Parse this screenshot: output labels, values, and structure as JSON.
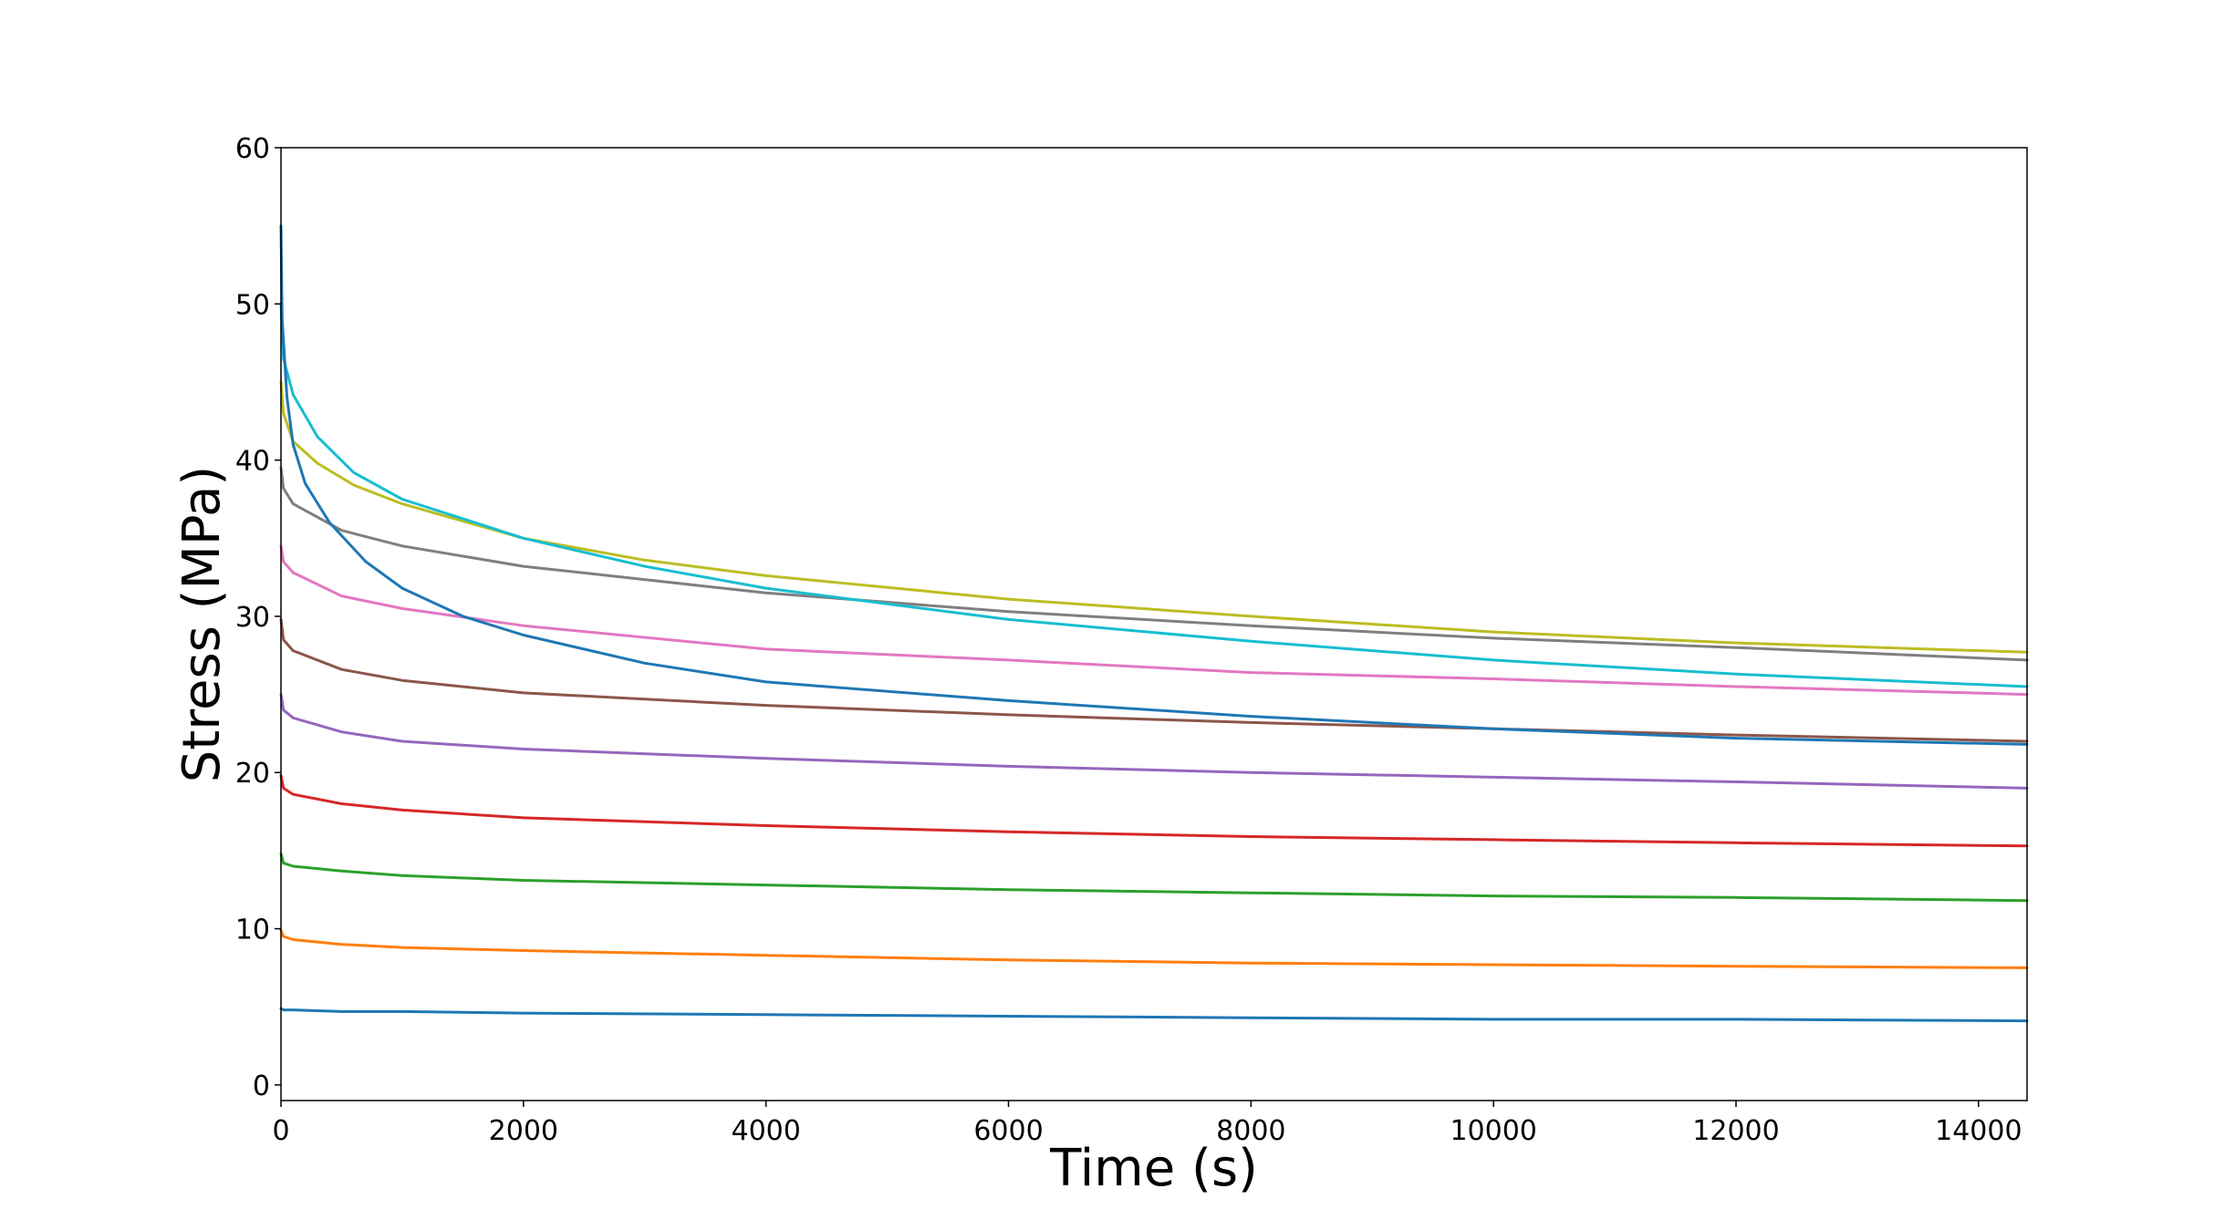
{
  "chart_data": {
    "type": "line",
    "title": "",
    "xlabel": "Time (s)",
    "ylabel": "Stress (MPa)",
    "xlim": [
      0,
      14400
    ],
    "ylim": [
      -1,
      60
    ],
    "xticks": [
      0,
      2000,
      4000,
      6000,
      8000,
      10000,
      12000,
      14000
    ],
    "yticks": [
      0,
      10,
      20,
      30,
      40,
      50,
      60
    ],
    "grid": false,
    "legend": "none",
    "series": [
      {
        "color": "#1f77b4",
        "x": [
          0,
          20,
          100,
          500,
          1000,
          2000,
          4000,
          6000,
          8000,
          10000,
          12000,
          14400
        ],
        "y": [
          4.9,
          4.8,
          4.8,
          4.7,
          4.7,
          4.6,
          4.5,
          4.4,
          4.3,
          4.2,
          4.2,
          4.1
        ]
      },
      {
        "color": "#ff7f0e",
        "x": [
          0,
          20,
          100,
          500,
          1000,
          2000,
          4000,
          6000,
          8000,
          10000,
          12000,
          14400
        ],
        "y": [
          9.9,
          9.5,
          9.3,
          9.0,
          8.8,
          8.6,
          8.3,
          8.0,
          7.8,
          7.7,
          7.6,
          7.5
        ]
      },
      {
        "color": "#2ca02c",
        "x": [
          0,
          20,
          100,
          500,
          1000,
          2000,
          4000,
          6000,
          8000,
          10000,
          12000,
          14400
        ],
        "y": [
          14.8,
          14.2,
          14.0,
          13.7,
          13.4,
          13.1,
          12.8,
          12.5,
          12.3,
          12.1,
          12.0,
          11.8
        ]
      },
      {
        "color": "#d62728",
        "x": [
          0,
          20,
          100,
          500,
          1000,
          2000,
          4000,
          6000,
          8000,
          10000,
          12000,
          14400
        ],
        "y": [
          19.8,
          19.0,
          18.6,
          18.0,
          17.6,
          17.1,
          16.6,
          16.2,
          15.9,
          15.7,
          15.5,
          15.3
        ]
      },
      {
        "color": "#9467bd",
        "x": [
          0,
          20,
          100,
          500,
          1000,
          2000,
          4000,
          6000,
          8000,
          10000,
          12000,
          14400
        ],
        "y": [
          25.0,
          24.0,
          23.5,
          22.6,
          22.0,
          21.5,
          20.9,
          20.4,
          20.0,
          19.7,
          19.4,
          19.0
        ]
      },
      {
        "color": "#8c564b",
        "x": [
          0,
          20,
          100,
          500,
          1000,
          2000,
          4000,
          6000,
          8000,
          10000,
          12000,
          14400
        ],
        "y": [
          29.8,
          28.5,
          27.8,
          26.6,
          25.9,
          25.1,
          24.3,
          23.7,
          23.2,
          22.8,
          22.4,
          22.0
        ]
      },
      {
        "color": "#e377c2",
        "x": [
          0,
          20,
          100,
          500,
          1000,
          2000,
          4000,
          6000,
          8000,
          10000,
          12000,
          14400
        ],
        "y": [
          34.5,
          33.5,
          32.8,
          31.3,
          30.5,
          29.4,
          27.9,
          27.2,
          26.4,
          26.0,
          25.5,
          25.0
        ]
      },
      {
        "color": "#7f7f7f",
        "x": [
          0,
          20,
          100,
          500,
          1000,
          2000,
          4000,
          6000,
          8000,
          10000,
          12000,
          14400
        ],
        "y": [
          39.5,
          38.2,
          37.2,
          35.5,
          34.5,
          33.2,
          31.5,
          30.3,
          29.4,
          28.6,
          28.0,
          27.2
        ]
      },
      {
        "color": "#bcbd22",
        "x": [
          0,
          20,
          100,
          300,
          600,
          1000,
          2000,
          3000,
          4000,
          6000,
          8000,
          10000,
          12000,
          14400
        ],
        "y": [
          45.0,
          43.0,
          41.2,
          39.8,
          38.4,
          37.2,
          35.0,
          33.6,
          32.6,
          31.1,
          30.0,
          29.0,
          28.3,
          27.7
        ]
      },
      {
        "color": "#17becf",
        "x": [
          0,
          20,
          100,
          300,
          600,
          1000,
          2000,
          3000,
          4000,
          6000,
          8000,
          10000,
          12000,
          14400
        ],
        "y": [
          50.0,
          46.5,
          44.2,
          41.5,
          39.2,
          37.5,
          35.0,
          33.2,
          31.8,
          29.8,
          28.4,
          27.2,
          26.3,
          25.5
        ]
      },
      {
        "color": "#1f77b4",
        "x": [
          0,
          10,
          50,
          100,
          200,
          400,
          700,
          1000,
          1500,
          2000,
          3000,
          4000,
          6000,
          8000,
          10000,
          12000,
          14400
        ],
        "y": [
          55.0,
          49.0,
          44.0,
          41.0,
          38.5,
          36.0,
          33.5,
          31.8,
          30.0,
          28.8,
          27.0,
          25.8,
          24.6,
          23.6,
          22.8,
          22.2,
          21.8
        ]
      }
    ]
  }
}
